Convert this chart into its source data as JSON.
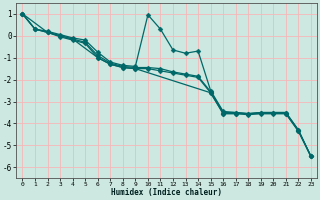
{
  "xlabel": "Humidex (Indice chaleur)",
  "background_color": "#cce8e0",
  "grid_color": "#f5b8b8",
  "line_color": "#006868",
  "xlim": [
    -0.5,
    23.5
  ],
  "ylim": [
    -6.5,
    1.5
  ],
  "xticks": [
    0,
    1,
    2,
    3,
    4,
    5,
    6,
    7,
    8,
    9,
    10,
    11,
    12,
    13,
    14,
    15,
    16,
    17,
    18,
    19,
    20,
    21,
    22,
    23
  ],
  "yticks": [
    -6,
    -5,
    -4,
    -3,
    -2,
    -1,
    0,
    1
  ],
  "line1_x": [
    0,
    1,
    2,
    3,
    4,
    5,
    6,
    7,
    8,
    9,
    10,
    11,
    12,
    13,
    14,
    15,
    16,
    17,
    18,
    19,
    20,
    21,
    22,
    23
  ],
  "line1_y": [
    1.0,
    0.3,
    0.2,
    0.05,
    -0.1,
    -0.2,
    -0.75,
    -1.2,
    -1.35,
    -1.4,
    0.95,
    0.3,
    -0.65,
    -0.8,
    -0.7,
    -2.5,
    -3.45,
    -3.5,
    -3.55,
    -3.5,
    -3.5,
    -3.5,
    -4.3,
    -5.5
  ],
  "line2_x": [
    0,
    1,
    2,
    3,
    4,
    5,
    6,
    7,
    8,
    9,
    10,
    11,
    12,
    13,
    14,
    15,
    16,
    17,
    18,
    19,
    20,
    21,
    22,
    23
  ],
  "line2_y": [
    1.0,
    0.3,
    0.15,
    0.0,
    -0.15,
    -0.3,
    -0.9,
    -1.25,
    -1.4,
    -1.45,
    -1.45,
    -1.5,
    -1.65,
    -1.75,
    -1.85,
    -2.55,
    -3.5,
    -3.5,
    -3.55,
    -3.5,
    -3.5,
    -3.5,
    -4.3,
    -5.5
  ],
  "line3_x": [
    0,
    1,
    2,
    3,
    4,
    5,
    6,
    7,
    8,
    9,
    10,
    11,
    12,
    13,
    14,
    15,
    16,
    17,
    18,
    19,
    20,
    21,
    22,
    23
  ],
  "line3_y": [
    1.0,
    0.3,
    0.15,
    -0.05,
    -0.2,
    -0.35,
    -1.0,
    -1.3,
    -1.45,
    -1.5,
    -1.5,
    -1.6,
    -1.7,
    -1.8,
    -1.9,
    -2.6,
    -3.55,
    -3.55,
    -3.6,
    -3.55,
    -3.55,
    -3.55,
    -4.35,
    -5.5
  ],
  "line4_x": [
    0,
    2,
    4,
    6,
    7,
    8,
    9,
    15,
    16,
    17,
    21,
    22,
    23
  ],
  "line4_y": [
    1.0,
    0.15,
    -0.15,
    -1.0,
    -1.3,
    -1.45,
    -1.5,
    -2.6,
    -3.55,
    -3.55,
    -3.55,
    -4.35,
    -5.5
  ]
}
